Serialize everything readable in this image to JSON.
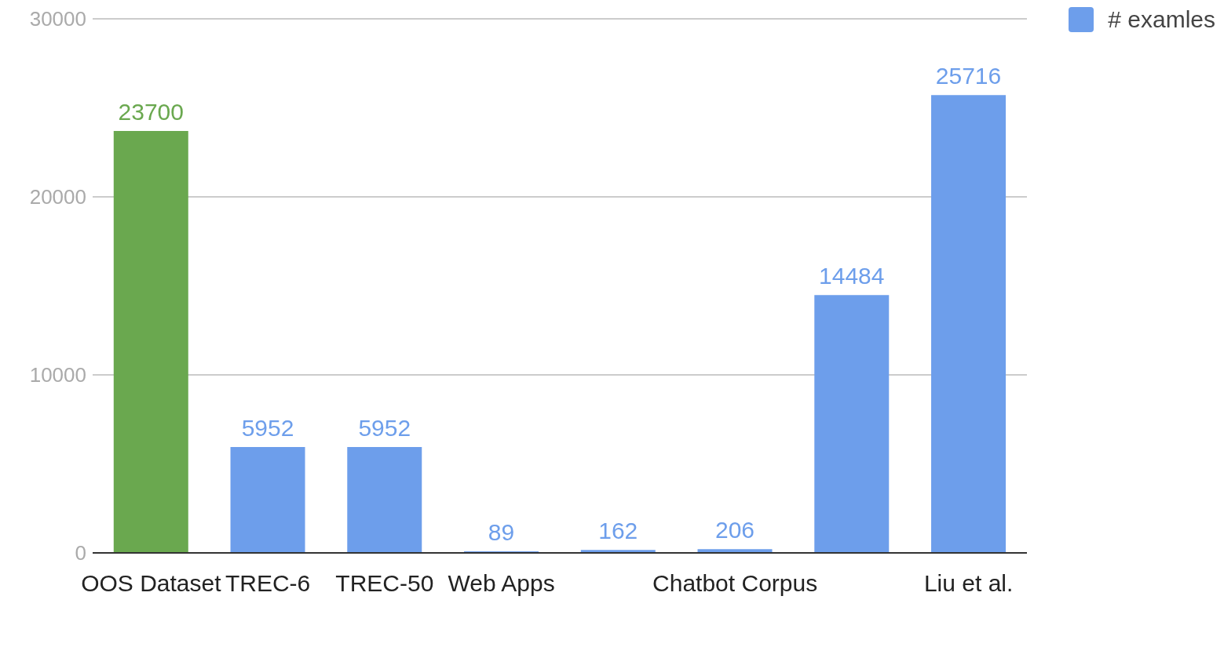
{
  "chart_data": {
    "type": "bar",
    "categories": [
      "OOS Dataset",
      "TREC-6",
      "TREC-50",
      "Web Apps",
      null,
      "Chatbot Corpus",
      null,
      "Liu et al."
    ],
    "series": [
      {
        "name": "# examles",
        "color": "#6d9eeb",
        "colors": [
          "#6aa84f",
          "#6d9eeb",
          "#6d9eeb",
          "#6d9eeb",
          "#6d9eeb",
          "#6d9eeb",
          "#6d9eeb",
          "#6d9eeb"
        ],
        "values": [
          23700,
          5952,
          5952,
          89,
          162,
          206,
          14484,
          25716
        ]
      }
    ],
    "ylim": [
      0,
      30000
    ],
    "yticks": [
      0,
      10000,
      20000,
      30000
    ],
    "grid": "y",
    "legend": "top right",
    "data_labels": true
  }
}
